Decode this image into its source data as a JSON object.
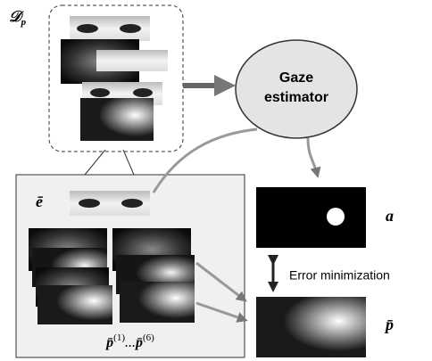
{
  "dataset_label": {
    "symbol": "𝒟",
    "subscript": "p"
  },
  "estimator": {
    "lines": [
      "Gaze",
      "estimator"
    ]
  },
  "eye_label": "ē",
  "target_label": "a",
  "loss_label": "Error minimization",
  "prediction_label": "p̄",
  "sequence_label": {
    "parts": [
      "p̄",
      "(1)",
      "...",
      "p̄",
      "(6)"
    ]
  }
}
